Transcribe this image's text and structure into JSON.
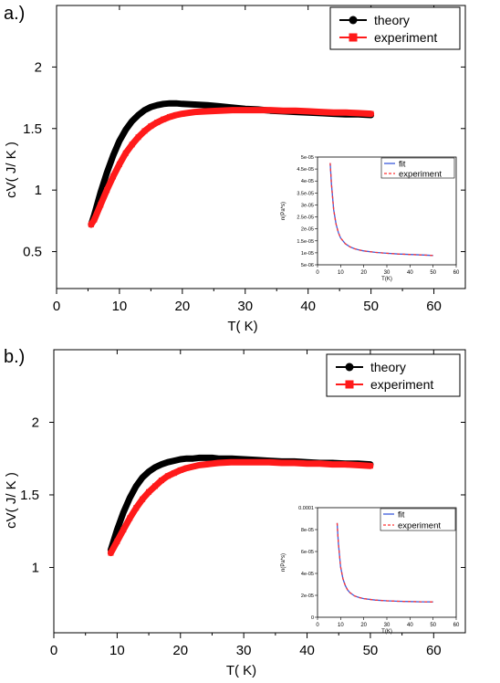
{
  "figure": {
    "panel_a_label": "a.)",
    "panel_b_label": "b.)"
  },
  "colors": {
    "theory": "#000000",
    "experiment": "#ff1a1a",
    "fit": "#3b5bdb",
    "inset_experiment": "#ff3333"
  },
  "chart_data": [
    {
      "panel": "a.)",
      "type": "line",
      "xlabel": "T( K)",
      "ylabel": "cV( J/ K )",
      "xlim": [
        0,
        65
      ],
      "ylim": [
        0.2,
        2.5
      ],
      "xticks": [
        0,
        10,
        20,
        30,
        40,
        50,
        60
      ],
      "yticks": [
        0.5,
        1,
        1.5,
        2
      ],
      "xtick_labels": [
        "0",
        "10",
        "20",
        "30",
        "40",
        "50",
        "60"
      ],
      "ytick_labels": [
        "0.5",
        "1",
        "1.5",
        "2"
      ],
      "legend": {
        "placement": "top-right",
        "entries": [
          "theory",
          "experiment"
        ]
      },
      "series": [
        {
          "name": "theory",
          "marker": "circle",
          "x": [
            5.5,
            6,
            7,
            8,
            9,
            10,
            11,
            12,
            13,
            14,
            15,
            16,
            17,
            18,
            19,
            20,
            22,
            24,
            26,
            28,
            30,
            32,
            34,
            36,
            38,
            40,
            42,
            44,
            46,
            48,
            50
          ],
          "y": [
            0.72,
            0.8,
            0.98,
            1.14,
            1.28,
            1.4,
            1.49,
            1.56,
            1.61,
            1.65,
            1.675,
            1.69,
            1.7,
            1.705,
            1.705,
            1.7,
            1.695,
            1.69,
            1.68,
            1.67,
            1.66,
            1.655,
            1.645,
            1.64,
            1.635,
            1.63,
            1.625,
            1.62,
            1.615,
            1.615,
            1.61
          ]
        },
        {
          "name": "experiment",
          "marker": "square",
          "x": [
            5.5,
            6,
            7,
            8,
            9,
            10,
            11,
            12,
            13,
            14,
            15,
            16,
            17,
            18,
            19,
            20,
            22,
            24,
            26,
            28,
            30,
            32,
            34,
            36,
            38,
            40,
            42,
            44,
            46,
            48,
            50
          ],
          "y": [
            0.72,
            0.76,
            0.88,
            1.0,
            1.11,
            1.21,
            1.3,
            1.37,
            1.43,
            1.48,
            1.52,
            1.55,
            1.575,
            1.595,
            1.61,
            1.62,
            1.635,
            1.64,
            1.645,
            1.65,
            1.65,
            1.65,
            1.65,
            1.645,
            1.645,
            1.64,
            1.635,
            1.63,
            1.63,
            1.625,
            1.62
          ]
        }
      ],
      "inset": {
        "type": "line",
        "xlabel": "T(K)",
        "ylabel": "n(Pa*s)",
        "xlim": [
          0,
          60
        ],
        "ylim": [
          5e-06,
          5e-05
        ],
        "xticks": [
          0,
          10,
          20,
          30,
          40,
          50,
          60
        ],
        "yticks": [
          5e-06,
          1e-05,
          1.5e-05,
          2e-05,
          2.5e-05,
          3e-05,
          3.5e-05,
          4e-05,
          4.5e-05,
          5e-05
        ],
        "xtick_labels": [
          "0",
          "10",
          "20",
          "30",
          "40",
          "50",
          "60"
        ],
        "ytick_labels": [
          "5e-06",
          "1e-05",
          "1.5e-05",
          "2e-05",
          "2.5e-05",
          "3e-05",
          "3.5e-05",
          "4e-05",
          "4.5e-05",
          "5e-05"
        ],
        "legend": {
          "placement": "top-right",
          "entries": [
            "fit",
            "experiment"
          ]
        },
        "series": [
          {
            "name": "fit",
            "style": "solid",
            "x": [
              5.5,
              6,
              7,
              8,
              9,
              10,
              12,
              14,
              16,
              18,
              20,
              25,
              30,
              35,
              40,
              45,
              50
            ],
            "y": [
              4.75e-05,
              3.9e-05,
              2.8e-05,
              2.2e-05,
              1.85e-05,
              1.62e-05,
              1.38e-05,
              1.25e-05,
              1.17e-05,
              1.12e-05,
              1.08e-05,
              1.02e-05,
              9.8e-06,
              9.5e-06,
              9.3e-06,
              9.1e-06,
              8.9e-06
            ]
          },
          {
            "name": "experiment",
            "style": "dashed",
            "x": [
              5.5,
              6,
              7,
              8,
              9,
              10,
              12,
              14,
              16,
              18,
              20,
              25,
              30,
              35,
              40,
              45,
              50
            ],
            "y": [
              4.75e-05,
              3.9e-05,
              2.8e-05,
              2.2e-05,
              1.85e-05,
              1.62e-05,
              1.38e-05,
              1.25e-05,
              1.17e-05,
              1.12e-05,
              1.08e-05,
              1.02e-05,
              9.8e-06,
              9.5e-06,
              9.3e-06,
              9.1e-06,
              8.9e-06
            ]
          }
        ]
      }
    },
    {
      "panel": "b.)",
      "type": "line",
      "xlabel": "T( K)",
      "ylabel": "cV( J/ K )",
      "xlim": [
        0,
        65
      ],
      "ylim": [
        0.55,
        2.5
      ],
      "xticks": [
        0,
        10,
        20,
        30,
        40,
        50,
        60
      ],
      "yticks": [
        1,
        1.5,
        2
      ],
      "xtick_labels": [
        "0",
        "10",
        "20",
        "30",
        "40",
        "50",
        "60"
      ],
      "ytick_labels": [
        "1",
        "1.5",
        "2"
      ],
      "legend": {
        "placement": "top-right",
        "entries": [
          "theory",
          "experiment"
        ]
      },
      "series": [
        {
          "name": "theory",
          "marker": "circle",
          "x": [
            9,
            10,
            11,
            12,
            13,
            14,
            15,
            16,
            17,
            18,
            19,
            20,
            21,
            22,
            23,
            24,
            25,
            26,
            28,
            30,
            32,
            34,
            36,
            38,
            40,
            42,
            44,
            46,
            48,
            50
          ],
          "y": [
            1.12,
            1.26,
            1.38,
            1.48,
            1.56,
            1.62,
            1.66,
            1.69,
            1.71,
            1.725,
            1.735,
            1.745,
            1.75,
            1.75,
            1.755,
            1.755,
            1.755,
            1.75,
            1.75,
            1.745,
            1.74,
            1.735,
            1.73,
            1.73,
            1.725,
            1.72,
            1.72,
            1.715,
            1.715,
            1.71
          ]
        },
        {
          "name": "experiment",
          "marker": "square",
          "x": [
            9,
            10,
            11,
            12,
            13,
            14,
            15,
            16,
            17,
            18,
            19,
            20,
            21,
            22,
            23,
            24,
            25,
            26,
            28,
            30,
            32,
            34,
            36,
            38,
            40,
            42,
            44,
            46,
            48,
            50
          ],
          "y": [
            1.1,
            1.18,
            1.26,
            1.34,
            1.41,
            1.47,
            1.52,
            1.56,
            1.6,
            1.63,
            1.65,
            1.67,
            1.685,
            1.695,
            1.705,
            1.71,
            1.715,
            1.72,
            1.725,
            1.725,
            1.725,
            1.725,
            1.72,
            1.72,
            1.715,
            1.715,
            1.71,
            1.71,
            1.705,
            1.7
          ]
        }
      ],
      "inset": {
        "type": "line",
        "xlabel": "T(K)",
        "ylabel": "n(Pa*s)",
        "xlim": [
          0,
          60
        ],
        "ylim": [
          0,
          0.0001
        ],
        "xticks": [
          0,
          10,
          20,
          30,
          40,
          50,
          60
        ],
        "yticks": [
          0,
          2e-05,
          4e-05,
          6e-05,
          8e-05,
          0.0001
        ],
        "xtick_labels": [
          "0",
          "10",
          "20",
          "30",
          "40",
          "50",
          "60"
        ],
        "ytick_labels": [
          "0",
          "2e-05",
          "4e-05",
          "6e-05",
          "8e-05",
          "0.0001"
        ],
        "legend": {
          "placement": "top-right",
          "entries": [
            "fit",
            "experiment"
          ]
        },
        "series": [
          {
            "name": "fit",
            "style": "solid",
            "x": [
              8.5,
              9,
              10,
              11,
              12,
              13,
              14,
              16,
              18,
              20,
              25,
              30,
              35,
              40,
              45,
              50
            ],
            "y": [
              8.6e-05,
              6.8e-05,
              4.6e-05,
              3.5e-05,
              2.9e-05,
              2.5e-05,
              2.25e-05,
              1.95e-05,
              1.8e-05,
              1.7e-05,
              1.57e-05,
              1.5e-05,
              1.46e-05,
              1.43e-05,
              1.41e-05,
              1.4e-05
            ]
          },
          {
            "name": "experiment",
            "style": "dashed",
            "x": [
              8.5,
              9,
              10,
              11,
              12,
              13,
              14,
              16,
              18,
              20,
              25,
              30,
              35,
              40,
              45,
              50
            ],
            "y": [
              8.6e-05,
              6.8e-05,
              4.6e-05,
              3.5e-05,
              2.9e-05,
              2.5e-05,
              2.25e-05,
              1.95e-05,
              1.8e-05,
              1.7e-05,
              1.57e-05,
              1.5e-05,
              1.46e-05,
              1.43e-05,
              1.41e-05,
              1.4e-05
            ]
          }
        ]
      }
    }
  ]
}
